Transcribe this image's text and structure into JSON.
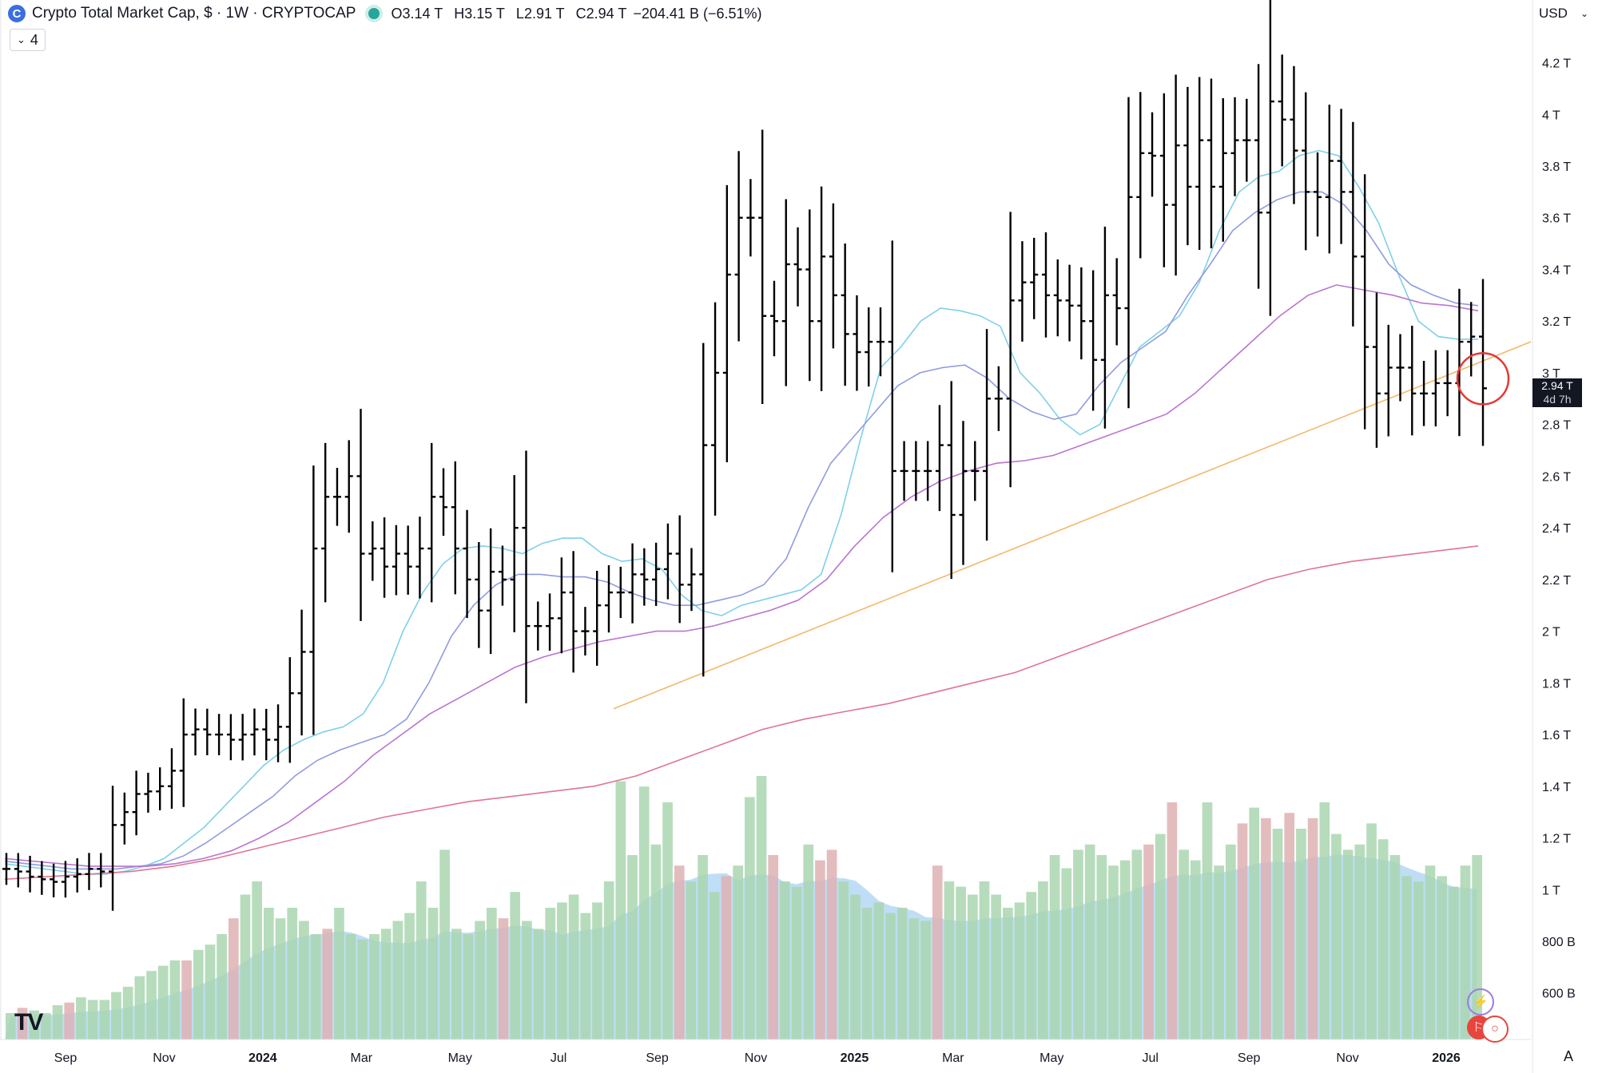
{
  "header": {
    "title": "Crypto Total Market Cap, $ · 1W · CRYPTOCAP",
    "symbol_badge": "C",
    "ohlc": [
      {
        "key": "O",
        "value": "3.14 T"
      },
      {
        "key": "H",
        "value": "3.15 T"
      },
      {
        "key": "L",
        "value": "2.91 T"
      },
      {
        "key": "C",
        "value": "2.94 T"
      }
    ],
    "change": "−204.41 B (−6.51%)",
    "indicator_count": "4",
    "currency": "USD"
  },
  "price_label": {
    "value": "2.94 T",
    "countdown": "4d 7h"
  },
  "auto_label": "A",
  "colors": {
    "bar": "#000000",
    "ema_short": "#7fd0e8",
    "ema_mid": "#8f9be0",
    "ema_long": "#b975d0",
    "ma_200": "#e0758f",
    "trendline": "#f2b96b",
    "vol_up": "#a9d6b0",
    "vol_down": "#deb1b3",
    "vol_ma_fill": "#a9d3f3",
    "highlight_circle": "#e53935"
  },
  "chart_data": {
    "type": "ohlc",
    "interval": "1W",
    "x_axis_labels": [
      "Sep",
      "Nov",
      "2024",
      "Mar",
      "May",
      "Jul",
      "Sep",
      "Nov",
      "2025",
      "Mar",
      "May",
      "Jul",
      "Sep",
      "Nov",
      "2026"
    ],
    "y_axis_labels": [
      "4.2 T",
      "4 T",
      "3.8 T",
      "3.6 T",
      "3.4 T",
      "3.2 T",
      "3 T",
      "2.8 T",
      "2.6 T",
      "2.4 T",
      "2.2 T",
      "2 T",
      "1.8 T",
      "1.6 T",
      "1.4 T",
      "1.2 T",
      "1 T",
      "800 B",
      "600 B"
    ],
    "y_range": [
      0.42,
      4.35
    ],
    "scale": "linear",
    "grid": false,
    "price_close_trend": [
      1.08,
      1.07,
      1.05,
      1.04,
      1.03,
      1.05,
      1.06,
      1.08,
      1.07,
      1.25,
      1.3,
      1.37,
      1.38,
      1.4,
      1.46,
      1.6,
      1.62,
      1.6,
      1.6,
      1.58,
      1.6,
      1.62,
      1.58,
      1.63,
      1.76,
      1.92,
      2.32,
      2.52,
      2.52,
      2.6,
      2.3,
      2.32,
      2.25,
      2.3,
      2.25,
      2.32,
      2.52,
      2.48,
      2.32,
      2.2,
      2.08,
      2.23,
      2.2,
      2.4,
      2.02,
      2.02,
      2.05,
      2.15,
      2.0,
      2.0,
      2.1,
      2.15,
      2.15,
      2.22,
      2.2,
      2.24,
      2.3,
      2.18,
      2.22,
      2.72,
      3.0,
      3.38,
      3.6,
      3.6,
      3.22,
      3.2,
      3.42,
      3.4,
      3.2,
      3.45,
      3.3,
      3.15,
      3.08,
      3.12,
      3.12,
      2.62,
      2.62,
      2.62,
      2.62,
      2.72,
      2.45,
      2.62,
      2.62,
      2.9,
      2.9,
      3.28,
      3.35,
      3.38,
      3.3,
      3.28,
      3.26,
      3.2,
      3.05,
      3.3,
      3.25,
      3.68,
      3.85,
      3.84,
      3.65,
      3.88,
      3.72,
      3.9,
      3.72,
      3.85,
      3.9,
      3.9,
      3.62,
      4.05,
      3.98,
      3.86,
      3.7,
      3.68,
      3.82,
      3.7,
      3.45,
      3.1,
      2.92,
      3.02,
      3.02,
      2.92,
      2.92,
      2.96,
      2.96,
      3.12,
      3.14,
      2.94
    ],
    "series": [
      {
        "name": "",
        "kind": "line",
        "color_key": "ema_short",
        "values": [
          1.1,
          1.09,
          1.08,
          1.07,
          1.06,
          1.06,
          1.07,
          1.09,
          1.12,
          1.18,
          1.24,
          1.32,
          1.4,
          1.48,
          1.54,
          1.58,
          1.61,
          1.63,
          1.68,
          1.8,
          2.0,
          2.15,
          2.26,
          2.32,
          2.33,
          2.32,
          2.3,
          2.34,
          2.36,
          2.36,
          2.3,
          2.27,
          2.28,
          2.24,
          2.14,
          2.08,
          2.06,
          2.1,
          2.12,
          2.14,
          2.16,
          2.22,
          2.45,
          2.75,
          3.02,
          3.1,
          3.2,
          3.25,
          3.24,
          3.22,
          3.18,
          3.0,
          2.92,
          2.82,
          2.76,
          2.8,
          2.95,
          3.1,
          3.16,
          3.22,
          3.35,
          3.55,
          3.7,
          3.76,
          3.78,
          3.84,
          3.86,
          3.84,
          3.72,
          3.58,
          3.38,
          3.2,
          3.14,
          3.13,
          3.13
        ]
      },
      {
        "name": "",
        "kind": "line",
        "color_key": "ema_mid",
        "values": [
          1.11,
          1.1,
          1.09,
          1.08,
          1.08,
          1.08,
          1.09,
          1.1,
          1.13,
          1.18,
          1.24,
          1.3,
          1.36,
          1.44,
          1.5,
          1.54,
          1.57,
          1.6,
          1.66,
          1.8,
          1.98,
          2.1,
          2.18,
          2.22,
          2.22,
          2.21,
          2.21,
          2.19,
          2.15,
          2.12,
          2.1,
          2.1,
          2.12,
          2.14,
          2.18,
          2.28,
          2.48,
          2.65,
          2.75,
          2.85,
          2.95,
          3.0,
          3.02,
          3.03,
          2.98,
          2.9,
          2.85,
          2.82,
          2.84,
          2.95,
          3.04,
          3.1,
          3.16,
          3.3,
          3.42,
          3.55,
          3.62,
          3.67,
          3.7,
          3.7,
          3.65,
          3.55,
          3.42,
          3.34,
          3.3,
          3.27,
          3.26
        ]
      },
      {
        "name": "",
        "kind": "line",
        "color_key": "ema_long",
        "values": [
          1.12,
          1.11,
          1.1,
          1.09,
          1.09,
          1.09,
          1.1,
          1.12,
          1.15,
          1.2,
          1.26,
          1.34,
          1.42,
          1.52,
          1.6,
          1.68,
          1.74,
          1.8,
          1.86,
          1.9,
          1.93,
          1.96,
          1.98,
          2.0,
          2.0,
          2.02,
          2.05,
          2.08,
          2.12,
          2.2,
          2.33,
          2.44,
          2.52,
          2.58,
          2.62,
          2.65,
          2.66,
          2.68,
          2.72,
          2.76,
          2.8,
          2.84,
          2.92,
          3.02,
          3.12,
          3.22,
          3.3,
          3.34,
          3.32,
          3.3,
          3.27,
          3.26,
          3.24
        ]
      },
      {
        "name": "",
        "kind": "line",
        "color_key": "ma_200",
        "values": [
          1.04,
          1.05,
          1.06,
          1.07,
          1.09,
          1.12,
          1.16,
          1.2,
          1.24,
          1.28,
          1.31,
          1.34,
          1.36,
          1.38,
          1.4,
          1.44,
          1.5,
          1.56,
          1.62,
          1.66,
          1.69,
          1.72,
          1.76,
          1.8,
          1.84,
          1.9,
          1.96,
          2.02,
          2.08,
          2.14,
          2.2,
          2.24,
          2.27,
          2.29,
          2.31,
          2.33
        ]
      },
      {
        "name": "",
        "kind": "trendline",
        "color_key": "trendline",
        "start": 1.7,
        "end": 3.12
      }
    ],
    "volume": {
      "up": [
        true,
        false,
        true,
        true,
        true,
        false,
        true,
        true,
        true,
        true,
        true,
        true,
        true,
        true,
        true,
        false,
        true,
        true,
        true,
        false,
        true,
        true,
        true,
        true,
        true,
        true,
        true,
        false,
        true,
        true,
        true,
        true,
        true,
        true,
        true,
        true,
        true,
        true,
        true,
        true,
        true,
        true,
        false,
        true,
        true,
        true,
        true,
        true,
        true,
        true,
        true,
        true,
        true,
        true,
        true,
        true,
        true,
        false,
        true,
        true,
        true,
        false,
        true,
        true,
        true,
        false,
        true,
        true,
        true,
        false,
        false,
        true,
        true,
        true,
        true,
        true,
        true,
        true,
        true,
        false,
        true,
        true,
        true,
        true,
        true,
        true,
        true,
        true,
        true,
        true,
        true,
        true,
        true,
        true,
        true,
        true,
        true,
        false,
        true,
        false,
        true,
        true,
        true,
        true,
        true,
        false,
        true,
        false,
        true,
        false,
        true,
        false,
        true,
        true,
        true,
        true,
        true,
        true,
        true,
        true,
        true,
        true,
        true,
        true,
        true,
        true,
        true,
        false
      ],
      "relative": [
        0.1,
        0.12,
        0.11,
        0.1,
        0.13,
        0.14,
        0.16,
        0.15,
        0.15,
        0.18,
        0.2,
        0.24,
        0.26,
        0.28,
        0.3,
        0.3,
        0.34,
        0.36,
        0.4,
        0.46,
        0.55,
        0.6,
        0.5,
        0.46,
        0.5,
        0.45,
        0.4,
        0.42,
        0.5,
        0.4,
        0.38,
        0.4,
        0.42,
        0.45,
        0.48,
        0.6,
        0.5,
        0.72,
        0.42,
        0.4,
        0.45,
        0.5,
        0.46,
        0.56,
        0.45,
        0.42,
        0.5,
        0.52,
        0.55,
        0.48,
        0.52,
        0.6,
        0.98,
        0.7,
        0.96,
        0.74,
        0.9,
        0.66,
        0.6,
        0.7,
        0.56,
        0.62,
        0.66,
        0.92,
        1.0,
        0.7,
        0.6,
        0.58,
        0.74,
        0.68,
        0.72,
        0.6,
        0.55,
        0.5,
        0.52,
        0.48,
        0.5,
        0.46,
        0.45,
        0.66,
        0.6,
        0.58,
        0.55,
        0.6,
        0.55,
        0.5,
        0.52,
        0.56,
        0.6,
        0.7,
        0.65,
        0.72,
        0.74,
        0.7,
        0.66,
        0.68,
        0.72,
        0.74,
        0.78,
        0.9,
        0.72,
        0.68,
        0.9,
        0.66,
        0.74,
        0.82,
        0.88,
        0.84,
        0.8,
        0.86,
        0.8,
        0.84,
        0.9,
        0.78,
        0.72,
        0.74,
        0.82,
        0.76,
        0.7,
        0.62,
        0.6,
        0.66,
        0.62,
        0.58,
        0.66,
        0.7
      ]
    },
    "last_price_marker": "circle"
  }
}
